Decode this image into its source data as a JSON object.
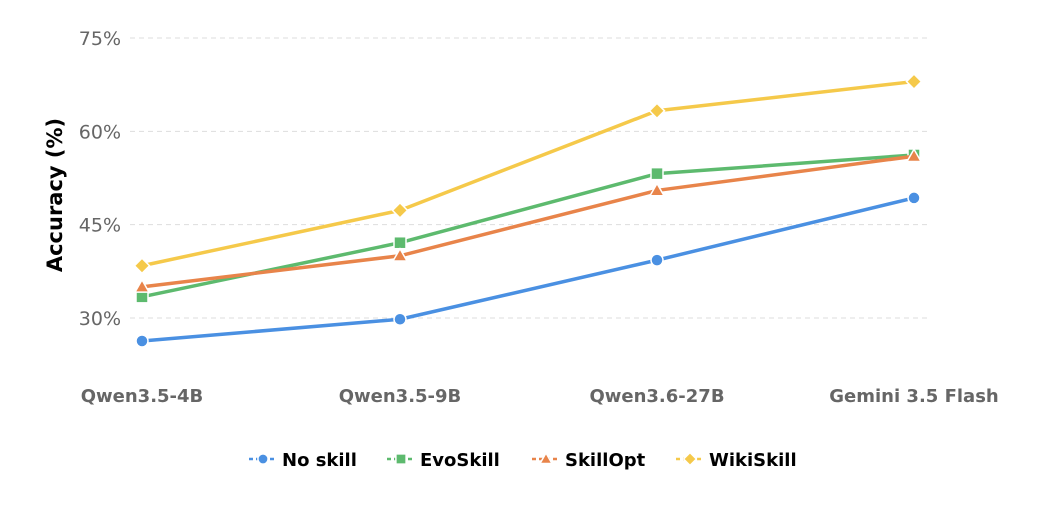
{
  "chart_data": {
    "type": "line",
    "categories": [
      "Qwen3.5-4B",
      "Qwen3.5-9B",
      "Qwen3.6-27B",
      "Gemini 3.5 Flash"
    ],
    "ylabel": "Accuracy (%)",
    "yticks": [
      30,
      45,
      60,
      75
    ],
    "ytick_labels": [
      "30%",
      "45%",
      "60%",
      "75%"
    ],
    "ylim": [
      22,
      77
    ],
    "grid": "horizontal",
    "legend_position": "bottom",
    "series": [
      {
        "name": "No skill",
        "color": "#4a90e2",
        "marker": "circle",
        "values": [
          26.3,
          29.8,
          39.3,
          49.3
        ]
      },
      {
        "name": "EvoSkill",
        "color": "#5dba6e",
        "marker": "square",
        "values": [
          33.4,
          42.1,
          53.2,
          56.2
        ]
      },
      {
        "name": "SkillOpt",
        "color": "#e8844a",
        "marker": "triangle",
        "values": [
          35.0,
          40.0,
          50.5,
          56.0
        ]
      },
      {
        "name": "WikiSkill",
        "color": "#f5c94a",
        "marker": "diamond",
        "values": [
          38.4,
          47.3,
          63.3,
          68.0
        ]
      }
    ]
  }
}
